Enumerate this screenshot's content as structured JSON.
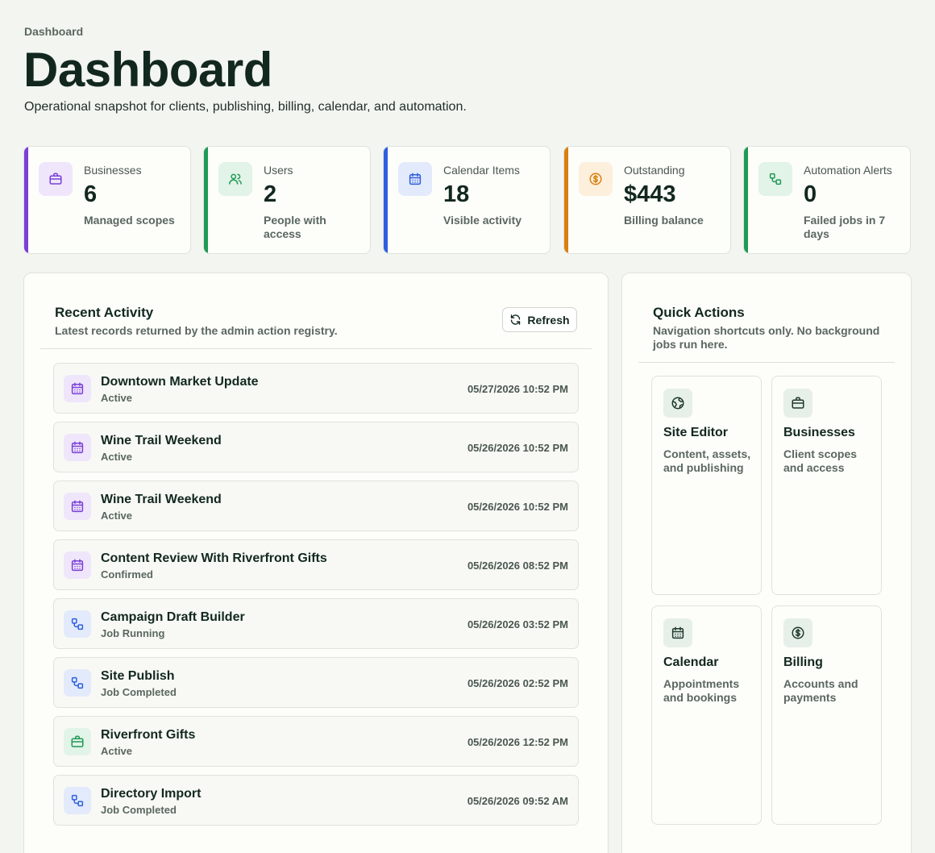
{
  "breadcrumb": "Dashboard",
  "title": "Dashboard",
  "subtitle": "Operational snapshot for clients, publishing, billing, calendar, and automation.",
  "stats": [
    {
      "label": "Businesses",
      "value": "6",
      "desc": "Managed scopes",
      "accent": "#7a3fd6",
      "icon": "briefcase-icon",
      "icon_bg": "#efe6fb",
      "icon_color": "#7a3fd6"
    },
    {
      "label": "Users",
      "value": "2",
      "desc": "People with access",
      "accent": "#1f9a55",
      "icon": "users-icon",
      "icon_bg": "#e2f3e8",
      "icon_color": "#1f9a55"
    },
    {
      "label": "Calendar Items",
      "value": "18",
      "desc": "Visible activity",
      "accent": "#2f5fe0",
      "icon": "calendar-icon",
      "icon_bg": "#e3eafb",
      "icon_color": "#2f5fe0"
    },
    {
      "label": "Outstanding",
      "value": "$443",
      "desc": "Billing balance",
      "accent": "#d9800f",
      "icon": "dollar-icon",
      "icon_bg": "#fcefdc",
      "icon_color": "#d9800f"
    },
    {
      "label": "Automation Alerts",
      "value": "0",
      "desc": "Failed jobs in 7 days",
      "accent": "#1f9a55",
      "icon": "workflow-icon",
      "icon_bg": "#e2f3e8",
      "icon_color": "#1f9a55"
    }
  ],
  "recent_activity": {
    "title": "Recent Activity",
    "subtitle": "Latest records returned by the admin action registry.",
    "refresh_label": "Refresh",
    "items": [
      {
        "title": "Downtown Market Update",
        "status": "Active",
        "time": "05/27/2026 10:52 PM",
        "icon": "calendar-icon",
        "icon_bg": "#efe6fb",
        "icon_color": "#7a3fd6"
      },
      {
        "title": "Wine Trail Weekend",
        "status": "Active",
        "time": "05/26/2026 10:52 PM",
        "icon": "calendar-icon",
        "icon_bg": "#efe6fb",
        "icon_color": "#7a3fd6"
      },
      {
        "title": "Wine Trail Weekend",
        "status": "Active",
        "time": "05/26/2026 10:52 PM",
        "icon": "calendar-icon",
        "icon_bg": "#efe6fb",
        "icon_color": "#7a3fd6"
      },
      {
        "title": "Content Review With Riverfront Gifts",
        "status": "Confirmed",
        "time": "05/26/2026 08:52 PM",
        "icon": "calendar-icon",
        "icon_bg": "#efe6fb",
        "icon_color": "#7a3fd6"
      },
      {
        "title": "Campaign Draft Builder",
        "status": "Job Running",
        "time": "05/26/2026 03:52 PM",
        "icon": "workflow-icon",
        "icon_bg": "#e3eafb",
        "icon_color": "#2f5fe0"
      },
      {
        "title": "Site Publish",
        "status": "Job Completed",
        "time": "05/26/2026 02:52 PM",
        "icon": "workflow-icon",
        "icon_bg": "#e3eafb",
        "icon_color": "#2f5fe0"
      },
      {
        "title": "Riverfront Gifts",
        "status": "Active",
        "time": "05/26/2026 12:52 PM",
        "icon": "briefcase-icon",
        "icon_bg": "#e2f3e8",
        "icon_color": "#1f9a55"
      },
      {
        "title": "Directory Import",
        "status": "Job Completed",
        "time": "05/26/2026 09:52 AM",
        "icon": "workflow-icon",
        "icon_bg": "#e3eafb",
        "icon_color": "#2f5fe0"
      }
    ]
  },
  "quick_actions": {
    "title": "Quick Actions",
    "subtitle": "Navigation shortcuts only. No background jobs run here.",
    "items": [
      {
        "title": "Site Editor",
        "desc": "Content, assets, and publishing",
        "icon": "globe-icon"
      },
      {
        "title": "Businesses",
        "desc": "Client scopes and access",
        "icon": "briefcase-icon"
      },
      {
        "title": "Calendar",
        "desc": "Appointments and bookings",
        "icon": "calendar-icon"
      },
      {
        "title": "Billing",
        "desc": "Accounts and payments",
        "icon": "dollar-icon"
      }
    ],
    "icon_color": "#1d3a2c"
  }
}
